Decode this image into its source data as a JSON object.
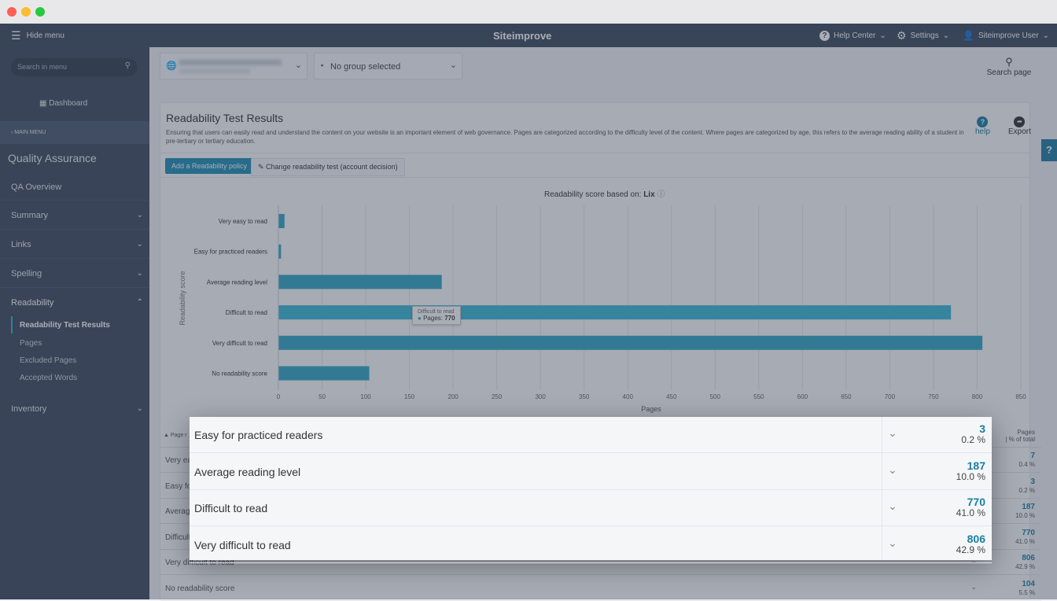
{
  "header": {
    "hide_menu": "Hide menu",
    "logo": "Siteimprove",
    "help_center": "Help Center",
    "settings": "Settings",
    "user": "Siteimprove User"
  },
  "sidebar": {
    "search_placeholder": "Search in menu",
    "dashboard": "Dashboard",
    "main_menu": "MAIN MENU",
    "section_title": "Quality Assurance",
    "items": [
      {
        "label": "QA Overview"
      },
      {
        "label": "Summary"
      },
      {
        "label": "Links"
      },
      {
        "label": "Spelling"
      },
      {
        "label": "Readability"
      },
      {
        "label": "Inventory"
      }
    ],
    "sub_items": [
      {
        "label": "Readability Test Results",
        "active": true
      },
      {
        "label": "Pages"
      },
      {
        "label": "Excluded Pages"
      },
      {
        "label": "Accepted Words"
      }
    ]
  },
  "toolbar": {
    "group_select": "No group selected",
    "search_page": "Search page"
  },
  "page": {
    "title": "Readability Test Results",
    "description": "Ensuring that users can easily read and understand the content on your website is an important element of web governance. Pages are categorized according to the difficulty level of the content. Where pages are categorized by age, this refers to the average reading ability of a student in pre-tertiary or tertiary education.",
    "help": "help",
    "export": "Export",
    "add_policy": "Add a Readability policy",
    "change_test": "Change readability test (account decision)"
  },
  "chart_data": {
    "type": "bar",
    "orientation": "horizontal",
    "title_prefix": "Readability score based on:",
    "title_value": "Lix",
    "ylabel": "Readability score",
    "xlabel": "Pages",
    "xlim": [
      0,
      850
    ],
    "xticks": [
      0,
      50,
      100,
      150,
      200,
      250,
      300,
      350,
      400,
      450,
      500,
      550,
      600,
      650,
      700,
      750,
      800,
      850
    ],
    "categories": [
      "Very easy to read",
      "Easy for practiced readers",
      "Average reading level",
      "Difficult to read",
      "Very difficult to read",
      "No readability score"
    ],
    "values": [
      7,
      3,
      187,
      770,
      806,
      104
    ],
    "color": "#32a8c4",
    "tooltip": {
      "title": "Difficult to read",
      "label": "Pages:",
      "value": "770"
    }
  },
  "table": {
    "col_first": "Page r",
    "col_pages": "Pages",
    "col_pct": "| % of total",
    "rows": [
      {
        "label": "Very easy to read",
        "pages": "7",
        "pct": "0.4 %"
      },
      {
        "label": "Easy for practiced readers",
        "pages": "3",
        "pct": "0.2 %"
      },
      {
        "label": "Average reading level",
        "pages": "187",
        "pct": "10.0 %"
      },
      {
        "label": "Difficult to read",
        "pages": "770",
        "pct": "41.0 %"
      },
      {
        "label": "Very difficult to read",
        "pages": "806",
        "pct": "42.9 %"
      },
      {
        "label": "No readability score",
        "pages": "104",
        "pct": "5.5 %"
      }
    ]
  },
  "popup": {
    "rows": [
      {
        "label": "Easy for practiced readers",
        "pages": "3",
        "pct": "0.2 %"
      },
      {
        "label": "Average reading level",
        "pages": "187",
        "pct": "10.0 %"
      },
      {
        "label": "Difficult to read",
        "pages": "770",
        "pct": "41.0 %"
      },
      {
        "label": "Very difficult to read",
        "pages": "806",
        "pct": "42.9 %"
      }
    ]
  }
}
